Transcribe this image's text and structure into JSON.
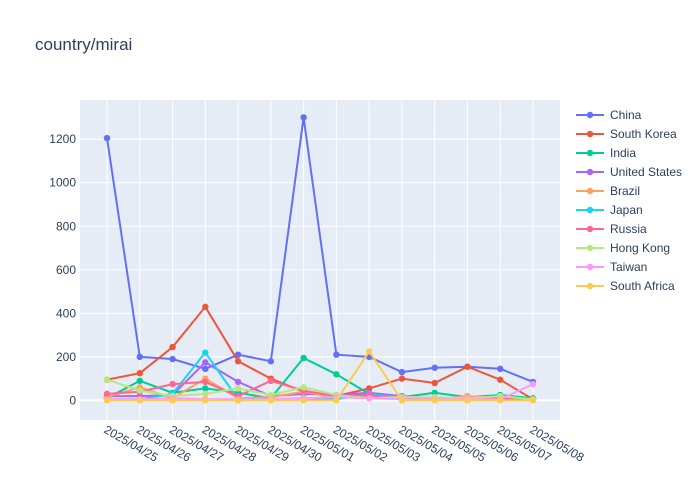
{
  "chart_data": {
    "type": "line",
    "title": "country/mirai",
    "xlabel": "",
    "ylabel": "",
    "x": [
      "2025/04/25",
      "2025/04/26",
      "2025/04/27",
      "2025/04/28",
      "2025/04/29",
      "2025/04/30",
      "2025/05/01",
      "2025/05/02",
      "2025/05/03",
      "2025/05/04",
      "2025/05/05",
      "2025/05/06",
      "2025/05/07",
      "2025/05/08"
    ],
    "ylim": [
      -90,
      1380
    ],
    "yticks": [
      0,
      200,
      400,
      600,
      800,
      1000,
      1200
    ],
    "grid": true,
    "legend_position": "right",
    "series": [
      {
        "name": "China",
        "color": "#636efa",
        "values": [
          1205,
          200,
          190,
          145,
          210,
          180,
          1300,
          210,
          200,
          130,
          150,
          155,
          145,
          85
        ]
      },
      {
        "name": "South Korea",
        "color": "#EF553B",
        "values": [
          95,
          125,
          245,
          430,
          180,
          100,
          40,
          20,
          55,
          100,
          80,
          155,
          95,
          5
        ]
      },
      {
        "name": "India",
        "color": "#00cc96",
        "values": [
          10,
          90,
          35,
          55,
          35,
          10,
          195,
          120,
          30,
          15,
          35,
          15,
          25,
          10
        ]
      },
      {
        "name": "United States",
        "color": "#ab63fa",
        "values": [
          20,
          20,
          25,
          175,
          85,
          20,
          30,
          25,
          35,
          20,
          10,
          10,
          10,
          5
        ]
      },
      {
        "name": "Brazil",
        "color": "#FFA15A",
        "values": [
          15,
          60,
          10,
          100,
          10,
          15,
          40,
          10,
          20,
          15,
          5,
          20,
          10,
          5
        ]
      },
      {
        "name": "Japan",
        "color": "#19d3f3",
        "values": [
          5,
          5,
          30,
          220,
          5,
          5,
          10,
          5,
          30,
          10,
          5,
          5,
          5,
          5
        ]
      },
      {
        "name": "Russia",
        "color": "#FF6692",
        "values": [
          30,
          40,
          75,
          85,
          20,
          90,
          45,
          20,
          25,
          5,
          10,
          10,
          10,
          5
        ]
      },
      {
        "name": "Hong Kong",
        "color": "#B6E880",
        "values": [
          95,
          45,
          20,
          30,
          55,
          25,
          60,
          25,
          10,
          15,
          15,
          10,
          20,
          5
        ]
      },
      {
        "name": "Taiwan",
        "color": "#FF97FF",
        "values": [
          5,
          5,
          10,
          5,
          5,
          5,
          10,
          15,
          10,
          5,
          5,
          5,
          5,
          75
        ]
      },
      {
        "name": "South Africa",
        "color": "#FECB52",
        "values": [
          0,
          0,
          0,
          0,
          0,
          0,
          0,
          0,
          225,
          0,
          0,
          0,
          0,
          0
        ]
      }
    ]
  }
}
